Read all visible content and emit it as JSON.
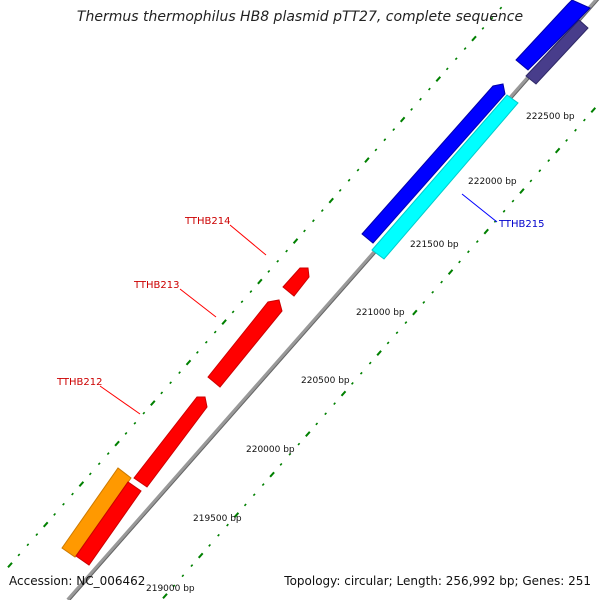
{
  "title": "Thermus thermophilus HB8 plasmid pTT27, complete sequence",
  "accession": "Accession: NC_006462",
  "summary": "Topology: circular; Length: 256,992 bp; Genes: 251",
  "ticks": [
    "219000 bp",
    "219500 bp",
    "220000 bp",
    "220500 bp",
    "221000 bp",
    "221500 bp",
    "222000 bp",
    "222500 bp"
  ],
  "genes": [
    {
      "name": "TTHB212",
      "color": "#ff0000"
    },
    {
      "name": "TTHB213",
      "color": "#ff0000"
    },
    {
      "name": "TTHB214",
      "color": "#ff0000"
    },
    {
      "name": "TTHB215",
      "color": "#0000ff"
    }
  ],
  "feature_colors": {
    "backbone": "#808080",
    "red_gene": "#ff0000",
    "blue_gene": "#0000ff",
    "cyan_gene": "#00ffff",
    "orange_gene": "#ff9900",
    "slate_gene": "#483d8b",
    "tick_green": "#008000"
  }
}
